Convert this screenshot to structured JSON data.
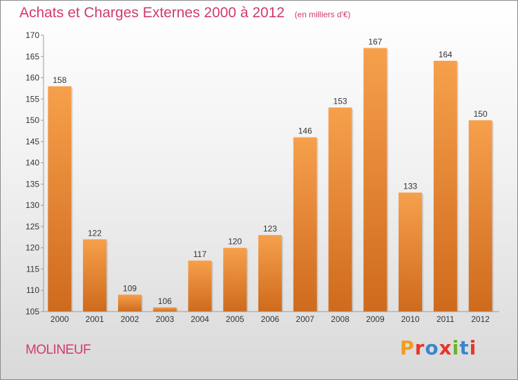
{
  "header": {
    "title": "Achats et Charges Externes 2000 à 2012",
    "unit": "(en milliers d'€)"
  },
  "footer": {
    "commune": "MOLINEUF",
    "brand": "Proxiti",
    "brand_colors": [
      "#f39c1a",
      "#e8352b",
      "#3b86c9",
      "#e8352b",
      "#6bb42d",
      "#3b86c9",
      "#e8352b"
    ]
  },
  "colors": {
    "bar_top": "#f6a04c",
    "bar_bottom": "#cf6a1c",
    "accent": "#d23a6a"
  },
  "chart_data": {
    "type": "bar",
    "title": "Achats et Charges Externes 2000 à 2012",
    "subtitle": "(en milliers d'€)",
    "xlabel": "",
    "ylabel": "",
    "categories": [
      "2000",
      "2001",
      "2002",
      "2003",
      "2004",
      "2005",
      "2006",
      "2007",
      "2008",
      "2009",
      "2010",
      "2011",
      "2012"
    ],
    "values": [
      158,
      122,
      109,
      106,
      117,
      120,
      123,
      146,
      153,
      167,
      133,
      164,
      150
    ],
    "ylim": [
      105,
      170
    ],
    "yticks": [
      105,
      110,
      115,
      120,
      125,
      130,
      135,
      140,
      145,
      150,
      155,
      160,
      165,
      170
    ],
    "grid": false,
    "legend": "none",
    "data_labels": true
  }
}
